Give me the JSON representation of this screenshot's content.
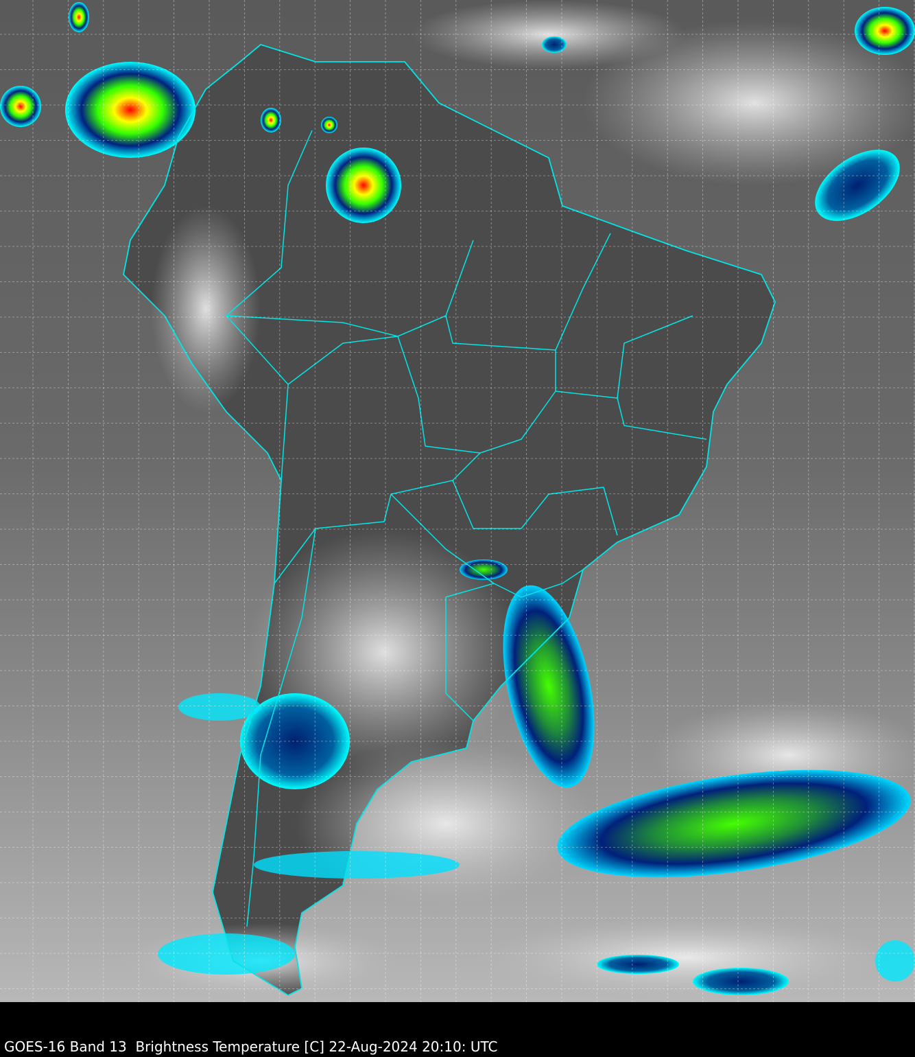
{
  "caption": "GOES-16 Band 13  Brightness Temperature [C] 22-Aug-2024 20:10: UTC",
  "colors": {
    "background_ocean": "#7a7a7a",
    "land_dark": "#4a4a4a",
    "cold_cloud_top_white": "#e8e8e8",
    "cyan_contour": "#00ffff",
    "borders": "#00e5e5",
    "deep_blue": "#00207a",
    "green": "#33ff00",
    "yellow": "#ffff00",
    "red": "#ff0000",
    "gridlines": "#ffffff"
  },
  "gridlines": "dashed"
}
